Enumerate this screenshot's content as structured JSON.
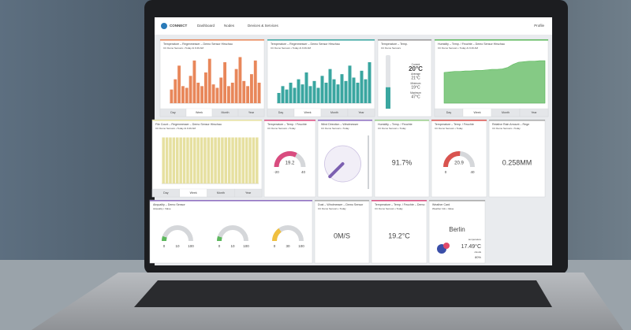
{
  "nav": {
    "brand": "CONNECT",
    "links": [
      "Dashboard",
      "Nodes",
      "Devices & Services"
    ],
    "profile": "Profile"
  },
  "tabs": [
    "Day",
    "Week",
    "Month",
    "Year"
  ],
  "panels": [
    {
      "kind": "bar",
      "title": "Temperature – Regenmesser – Demo Sensor Hirschau",
      "subtitle": "CC Demo Sensors • Today At 9:49 AM",
      "color": "#e8875a",
      "ylim": [
        0,
        30
      ],
      "values": [
        8,
        14,
        22,
        10,
        9,
        16,
        25,
        12,
        10,
        18,
        26,
        11,
        9,
        15,
        24,
        10,
        12,
        20,
        27,
        13,
        10,
        17,
        25,
        12
      ]
    },
    {
      "kind": "bar",
      "title": "Temperature – Regenmesser – Demo Sensor Hirschau",
      "subtitle": "CC Demo Sensors • Today At 9:49 AM",
      "color": "#3aa6a0",
      "ylim": [
        0,
        30
      ],
      "values": [
        6,
        10,
        8,
        12,
        9,
        14,
        11,
        18,
        10,
        13,
        9,
        16,
        12,
        20,
        14,
        11,
        17,
        13,
        22,
        15,
        12,
        19,
        14,
        24
      ]
    },
    {
      "kind": "thermo",
      "title": "Temperature – Temp.",
      "subtitle": "CC Demo Sensors",
      "color": "#999999",
      "value": 20,
      "ylim": [
        0,
        50
      ],
      "readout": "20°C",
      "stats": [
        [
          "Current",
          ""
        ],
        [
          "Average",
          "21°C"
        ],
        [
          "Minimum",
          "19°C"
        ],
        [
          "Maximum",
          "47°C"
        ]
      ]
    },
    {
      "kind": "area",
      "title": "Humidity – Temp. / Feuchte – Demo Sensor Hirschau",
      "subtitle": "CC Demo Sensors • Today At 9:49 AM",
      "color": "#5cb85c",
      "ylim": [
        0,
        100
      ],
      "values": [
        60,
        61,
        62,
        62,
        63,
        63,
        64,
        64,
        65,
        66,
        66,
        67,
        70,
        76,
        80,
        81,
        82,
        82,
        83,
        83
      ]
    },
    {
      "kind": "bar",
      "title": "File Count – Regenmesser – Demo Sensor Hirschau",
      "subtitle": "CC Demo Sensors • Today At 9:49 AM",
      "color": "#e6e0a0",
      "ylim": [
        0,
        10
      ],
      "values": [
        9,
        9,
        9,
        9,
        9,
        9,
        9,
        9,
        9,
        9,
        9,
        9,
        9,
        9,
        9,
        9,
        9,
        9,
        9,
        9,
        9,
        9,
        9,
        9,
        9,
        9,
        9,
        9
      ]
    },
    {
      "kind": "gauge",
      "title": "Temperature – Temp. / Feuchte",
      "subtitle": "CC Demo Sensors • Today",
      "color": "#d94c7f",
      "value": 19.2,
      "min": -20,
      "max": 40
    },
    {
      "kind": "compass",
      "title": "Wind Direction – Windmesser",
      "subtitle": "CC Demo Sensors • Today",
      "color": "#8e6fc1",
      "value": 225
    },
    {
      "kind": "text",
      "title": "Humidity – Temp. / Feuchte",
      "subtitle": "CC Demo Sensors • Today",
      "color": "#9acd8a",
      "readout": "91.7%"
    },
    {
      "kind": "gauge",
      "title": "Temperature – Temp. / Feuchte",
      "subtitle": "CC Demo Sensors • Today",
      "color": "#d9534f",
      "value": 20.9,
      "min": 0,
      "max": 40
    },
    {
      "kind": "text",
      "title": "Relative Rain Amount – Rege",
      "subtitle": "CC Demo Sensors • Today",
      "color": "#aaaaaa",
      "readout": "0.258MM"
    },
    {
      "kind": "multigauge",
      "title": "Airquality – Demo Sensor",
      "subtitle": "Airquality • Value",
      "color": "#8e6fc1",
      "gauges": [
        {
          "value": 10,
          "min": 0,
          "max": 100,
          "color": "#5cb85c"
        },
        {
          "value": 10,
          "min": 0,
          "max": 100,
          "color": "#5cb85c"
        },
        {
          "value": 30,
          "min": 0,
          "max": 100,
          "color": "#f0c040"
        }
      ]
    },
    {
      "kind": "text",
      "title": "Dust – Windmesser – Demo Sensor",
      "subtitle": "CC Demo Sensors • Today",
      "color": "#aaaaaa",
      "readout": "0M/S"
    },
    {
      "kind": "text",
      "title": "Temperature – Temp. / Feuchte – Demo",
      "subtitle": "CC Demo Sensors • Today",
      "color": "#d94c7f",
      "readout": "19.2°C"
    },
    {
      "kind": "weather",
      "title": "Weather Card",
      "subtitle": "Weather Info • Value",
      "color": "#aaaaaa",
      "city": "Berlin",
      "caption": "temperature",
      "readout": "17.49°C",
      "condition": "clouds",
      "humidity": "80%"
    }
  ]
}
